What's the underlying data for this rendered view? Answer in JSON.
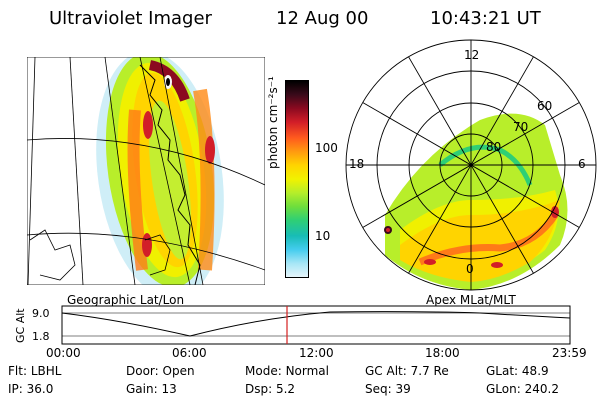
{
  "header": {
    "instrument": "Ultraviolet Imager",
    "date": "12 Aug 00",
    "time": "10:43:21 UT"
  },
  "left_panel": {
    "caption": "Geographic Lat/Lon"
  },
  "colorbar": {
    "unit_label": "photon cm⁻²s⁻¹",
    "ticks": [
      "100",
      "10"
    ],
    "colors": [
      "#000000",
      "#3a0a1a",
      "#8b0a20",
      "#d21e28",
      "#ff5a1e",
      "#ff9a10",
      "#ffd400",
      "#f2f200",
      "#b6ee2a",
      "#6fde3c",
      "#2fcf75",
      "#18bcb5",
      "#44ccee",
      "#a6e6f6",
      "#e6f5fb"
    ]
  },
  "right_panel": {
    "caption": "Apex MLat/MLT",
    "mlt_labels": {
      "top": "12",
      "left": "18",
      "right": "6",
      "bottom": "0"
    },
    "lat_labels": [
      "60",
      "70",
      "80"
    ]
  },
  "altitude_plot": {
    "ylabel": "GC Alt",
    "yticks": [
      "9.0",
      "1.8"
    ],
    "xticks": [
      "00:00",
      "06:00",
      "12:00",
      "18:00",
      "23:59"
    ],
    "marker_color": "#d42020"
  },
  "status": {
    "row1": [
      {
        "key": "Flt:",
        "value": "LBHL"
      },
      {
        "key": "Door:",
        "value": "Open"
      },
      {
        "key": "Mode:",
        "value": "Normal"
      },
      {
        "key": "GC Alt:",
        "value": "7.7 Re"
      },
      {
        "key": "GLat:",
        "value": "48.9"
      }
    ],
    "row2": [
      {
        "key": "IP:",
        "value": "36.0"
      },
      {
        "key": "Gain:",
        "value": "13"
      },
      {
        "key": "Dsp:",
        "value": "5.2"
      },
      {
        "key": "Seq:",
        "value": "39"
      },
      {
        "key": "GLon:",
        "value": "240.2"
      }
    ]
  }
}
